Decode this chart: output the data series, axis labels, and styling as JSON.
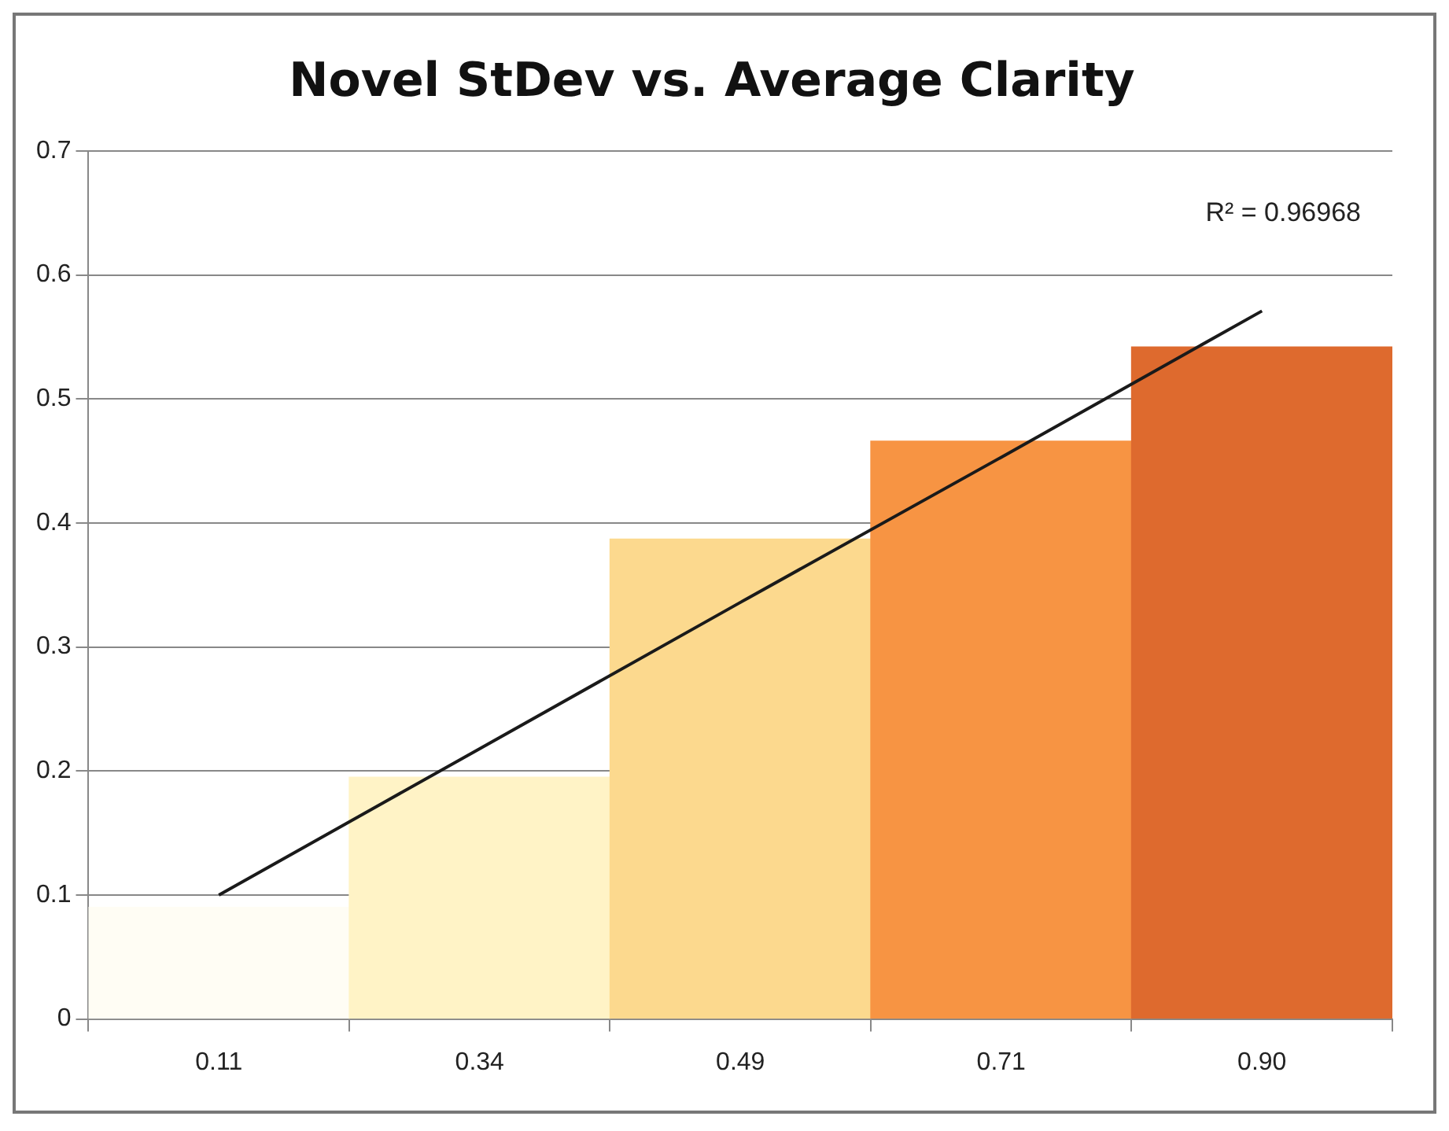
{
  "chart_data": {
    "type": "bar",
    "title": "Novel StDev vs. Average Clarity",
    "categories": [
      "0.11",
      "0.34",
      "0.49",
      "0.71",
      "0.90"
    ],
    "series": [
      {
        "colors": [
          "#fffdf4",
          "#fff3c6",
          "#fcd98e",
          "#f79443",
          "#de6a2e"
        ],
        "values": [
          0.09,
          0.195,
          0.387,
          0.466,
          0.542
        ]
      },
      {
        "type": "line",
        "color": "#1a1a1a",
        "values": [
          0.1,
          0.218,
          0.336,
          0.453,
          0.571
        ]
      }
    ],
    "ylim": [
      0,
      0.7
    ],
    "yticks": [
      0,
      0.1,
      0.2,
      0.3,
      0.4,
      0.5,
      0.6,
      0.7
    ],
    "grid": "y",
    "legend": false,
    "marker": "none",
    "annotations": [
      "R² = 0.96968"
    ]
  }
}
